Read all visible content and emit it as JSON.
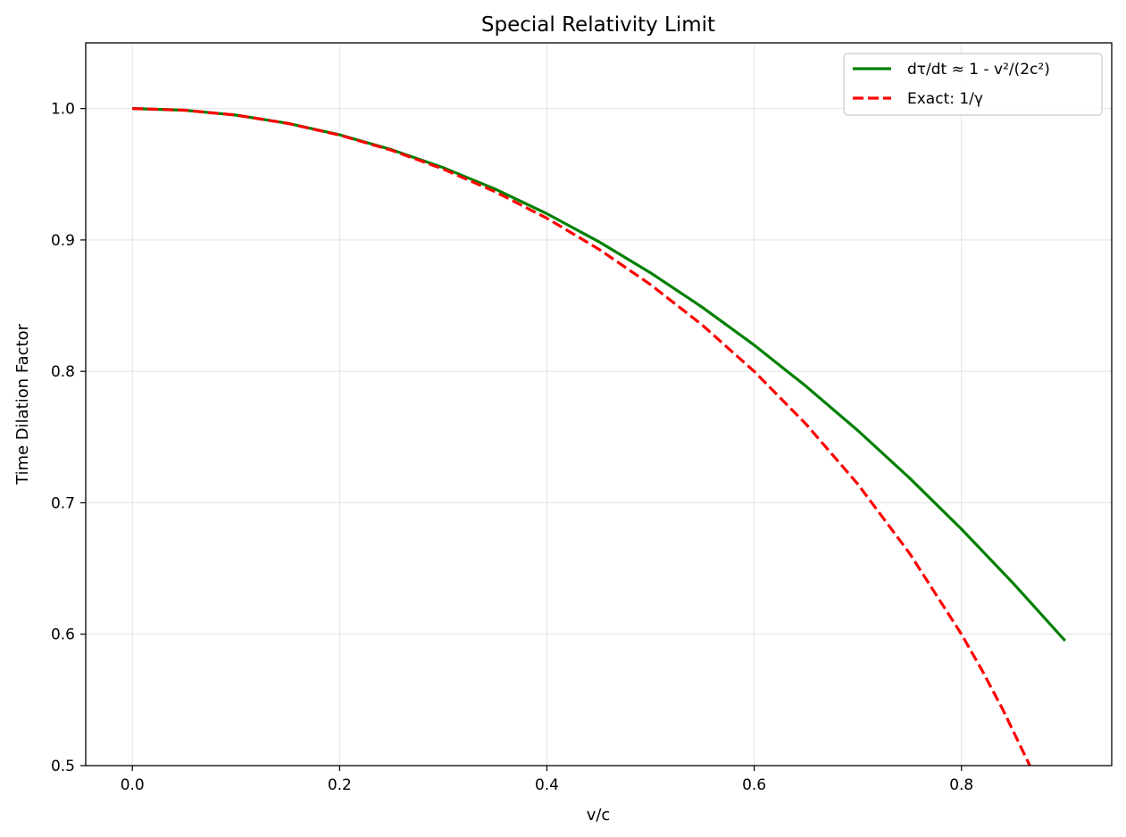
{
  "chart_data": {
    "type": "line",
    "title": "Special Relativity Limit",
    "xlabel": "v/c",
    "ylabel": "Time Dilation Factor",
    "xlim": [
      -0.045,
      0.945
    ],
    "ylim": [
      0.5,
      1.05
    ],
    "xticks": [
      0.0,
      0.2,
      0.4,
      0.6,
      0.8
    ],
    "xtick_labels": [
      "0.0",
      "0.2",
      "0.4",
      "0.6",
      "0.8"
    ],
    "yticks": [
      0.5,
      0.6,
      0.7,
      0.8,
      0.9,
      1.0
    ],
    "ytick_labels": [
      "0.5",
      "0.6",
      "0.7",
      "0.8",
      "0.9",
      "1.0"
    ],
    "grid": true,
    "legend_position": "top-right",
    "series": [
      {
        "name": "dτ/dt ≈ 1 - v²/(2c²)",
        "color": "#008000",
        "style": "solid",
        "x": [
          0.0,
          0.05,
          0.1,
          0.15,
          0.2,
          0.25,
          0.3,
          0.35,
          0.4,
          0.45,
          0.5,
          0.55,
          0.6,
          0.65,
          0.7,
          0.75,
          0.8,
          0.85,
          0.9
        ],
        "y": [
          1.0,
          0.99875,
          0.995,
          0.98875,
          0.98,
          0.96875,
          0.955,
          0.93875,
          0.92,
          0.89875,
          0.875,
          0.84875,
          0.82,
          0.78875,
          0.755,
          0.71875,
          0.68,
          0.63875,
          0.595
        ]
      },
      {
        "name": "Exact: 1/γ",
        "color": "#ff0000",
        "style": "dashed",
        "x": [
          0.0,
          0.05,
          0.1,
          0.15,
          0.2,
          0.25,
          0.3,
          0.35,
          0.4,
          0.45,
          0.5,
          0.55,
          0.6,
          0.65,
          0.7,
          0.75,
          0.8,
          0.82,
          0.84,
          0.866
        ],
        "y": [
          1.0,
          0.99875,
          0.99499,
          0.98869,
          0.9798,
          0.96825,
          0.95394,
          0.93675,
          0.91652,
          0.89303,
          0.86603,
          0.83516,
          0.8,
          0.75993,
          0.71414,
          0.66144,
          0.6,
          0.57236,
          0.54259,
          0.5
        ]
      }
    ]
  }
}
